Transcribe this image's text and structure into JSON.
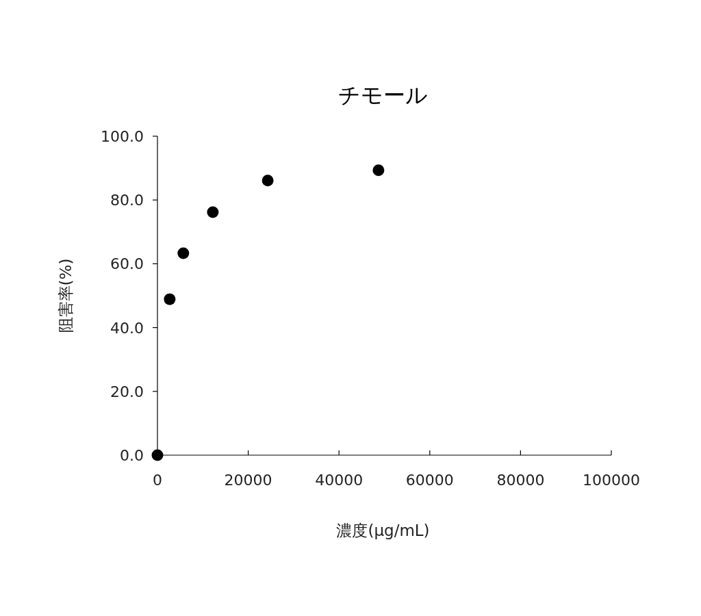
{
  "chart_data": {
    "type": "scatter",
    "title": "チモール",
    "xlabel": "濃度(μg/mL)",
    "ylabel": "阻害率(%)",
    "x": [
      0,
      2700,
      5700,
      12200,
      24300,
      48700
    ],
    "series": [
      {
        "color": "#000000",
        "values": [
          0,
          48.9,
          63.3,
          76.2,
          86.1,
          89.3
        ]
      }
    ],
    "xlim": [
      0,
      100000
    ],
    "xticks": [
      0,
      20000,
      40000,
      60000,
      80000,
      100000
    ],
    "ylim": [
      0,
      100
    ],
    "yticks": [
      {
        "value": 0,
        "label": "0.0"
      },
      {
        "value": 20,
        "label": "20.0"
      },
      {
        "value": 40,
        "label": "40.0"
      },
      {
        "value": 60,
        "label": "60.0"
      },
      {
        "value": 80,
        "label": "80.0"
      },
      {
        "value": 100,
        "label": "100.0"
      }
    ],
    "marker": "circle",
    "grid": false
  }
}
